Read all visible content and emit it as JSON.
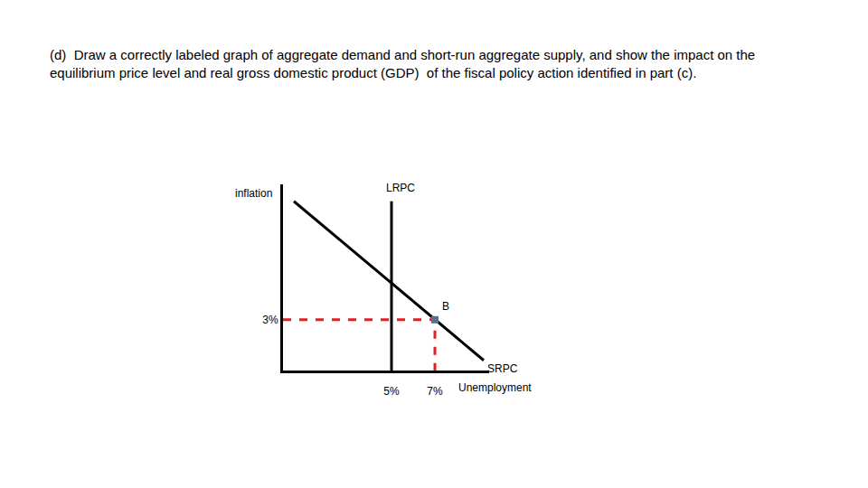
{
  "chart_data": {
    "type": "line",
    "title": "(d)  Draw a correctly labeled graph of aggregate demand and short-run aggregate supply, and show the impact on the\nequilibrium price level and real gross domestic product (GDP)  of the fiscal policy action identified in part (c).",
    "x_label": "Unemployment",
    "y_label": "inflation",
    "xlim": [
      0,
      9.5
    ],
    "ylim": [
      0,
      11
    ],
    "xticks": [
      {
        "value": 5,
        "label": "5%"
      },
      {
        "value": 7,
        "label": "7%"
      }
    ],
    "yticks": [
      {
        "value": 3,
        "label": "3%"
      }
    ],
    "grid": false,
    "series": [
      {
        "name": "LRPC",
        "color": "#000000",
        "x": [
          5,
          5
        ],
        "values": [
          0,
          10
        ]
      },
      {
        "name": "SRPC",
        "color": "#000000",
        "x": [
          0.5,
          9.25
        ],
        "values": [
          10,
          0.6
        ]
      },
      {
        "color": "#e02020",
        "line_style": "dashed",
        "x": [
          0,
          7,
          7
        ],
        "values": [
          3,
          3,
          0
        ]
      },
      {
        "name": "B",
        "type": "scatter",
        "marker": "square",
        "color": "#5a6e8c",
        "x": [
          7
        ],
        "values": [
          3
        ]
      }
    ]
  }
}
